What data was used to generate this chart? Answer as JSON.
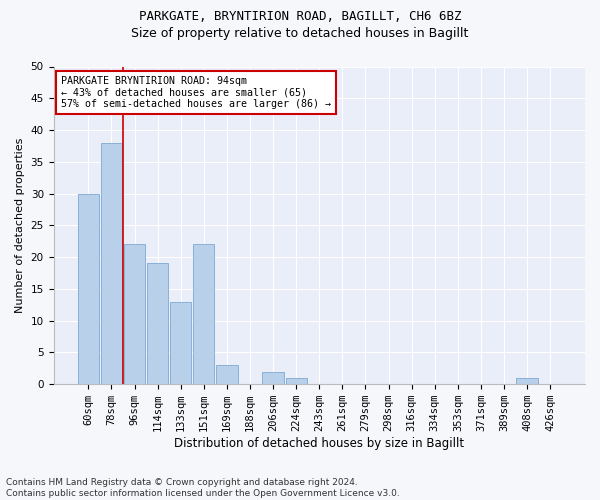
{
  "title1": "PARKGATE, BRYNTIRION ROAD, BAGILLT, CH6 6BZ",
  "title2": "Size of property relative to detached houses in Bagillt",
  "xlabel": "Distribution of detached houses by size in Bagillt",
  "ylabel": "Number of detached properties",
  "categories": [
    "60sqm",
    "78sqm",
    "96sqm",
    "114sqm",
    "133sqm",
    "151sqm",
    "169sqm",
    "188sqm",
    "206sqm",
    "224sqm",
    "243sqm",
    "261sqm",
    "279sqm",
    "298sqm",
    "316sqm",
    "334sqm",
    "353sqm",
    "371sqm",
    "389sqm",
    "408sqm",
    "426sqm"
  ],
  "values": [
    30,
    38,
    22,
    19,
    13,
    22,
    3,
    0,
    2,
    1,
    0,
    0,
    0,
    0,
    0,
    0,
    0,
    0,
    0,
    1,
    0
  ],
  "bar_color": "#b8d0ea",
  "bar_edge_color": "#8ab0d8",
  "vline_x_index": 1.5,
  "vline_color": "#cc0000",
  "annotation_text": "PARKGATE BRYNTIRION ROAD: 94sqm\n← 43% of detached houses are smaller (65)\n57% of semi-detached houses are larger (86) →",
  "annotation_box_color": "#ffffff",
  "annotation_box_edge": "#cc0000",
  "ylim": [
    0,
    50
  ],
  "yticks": [
    0,
    5,
    10,
    15,
    20,
    25,
    30,
    35,
    40,
    45,
    50
  ],
  "footnote": "Contains HM Land Registry data © Crown copyright and database right 2024.\nContains public sector information licensed under the Open Government Licence v3.0.",
  "bg_color": "#f5f7fb",
  "plot_bg_color": "#eaeef8",
  "title1_fontsize": 9,
  "title2_fontsize": 9,
  "xlabel_fontsize": 8.5,
  "ylabel_fontsize": 8,
  "tick_fontsize": 7.5,
  "footnote_fontsize": 6.5
}
